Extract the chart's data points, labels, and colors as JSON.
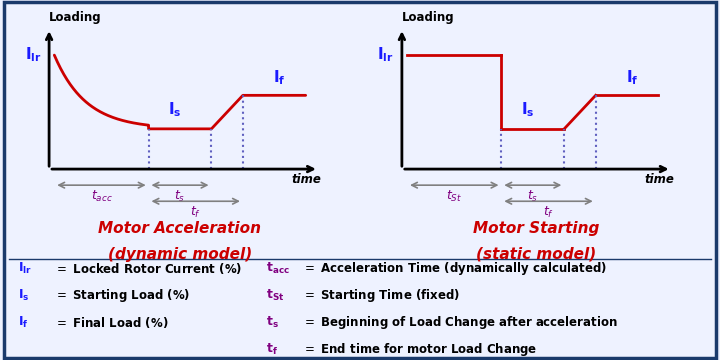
{
  "background_color": "#eef2ff",
  "border_color": "#1a3a6b",
  "left_title_line1": "Motor Acceleration",
  "left_title_line2": "(dynamic model)",
  "right_title_line1": "Motor Starting",
  "right_title_line2": "(static model)",
  "curve_color": "#cc0000",
  "title_color": "#cc0000",
  "label_blue": "#1a1aff",
  "label_purple": "#800080",
  "axis_color": "#000000",
  "arrow_color": "#808080"
}
